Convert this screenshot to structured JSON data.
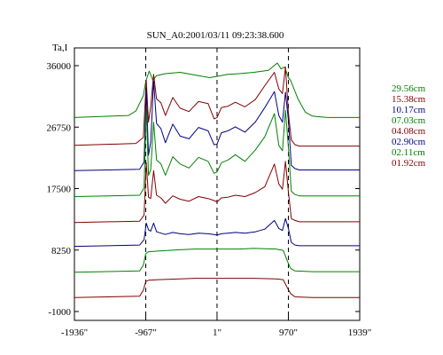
{
  "chart_data": {
    "type": "line",
    "title": "SUN_A0:2001/03/11 09:23:38.600",
    "ylabel": "Ta,I",
    "xlabel": "",
    "x_ticks": [
      "-1936\"",
      "-967\"",
      "1\"",
      "970\"",
      "1939\""
    ],
    "x_tick_values": [
      -1936,
      -967,
      1,
      970,
      1939
    ],
    "y_ticks": [
      "36000",
      "26750",
      "17500",
      "8250",
      "-1000"
    ],
    "y_tick_values": [
      36000,
      26750,
      17500,
      8250,
      -1000
    ],
    "xlim": [
      -1936,
      1939
    ],
    "ylim": [
      -1000,
      40000
    ],
    "vertical_dashed_lines": [
      -967,
      1,
      970
    ],
    "grid": false,
    "legend_position": "right",
    "colors": {
      "green": "#008000",
      "darkred": "#800000",
      "navy": "#000080"
    },
    "series": [
      {
        "name": "29.56cm",
        "color": "#008000",
        "x": [
          -1936,
          -1200,
          -1100,
          -1000,
          -967,
          -920,
          -870,
          -820,
          -700,
          -500,
          -300,
          -100,
          1,
          150,
          300,
          500,
          700,
          820,
          870,
          920,
          970,
          1000,
          1100,
          1200,
          1300,
          1500,
          1939
        ],
        "values": [
          28200,
          28500,
          29200,
          31500,
          33600,
          35200,
          33800,
          34500,
          34800,
          35000,
          34600,
          34200,
          34400,
          34700,
          34800,
          35000,
          35300,
          36400,
          35500,
          35800,
          34200,
          33800,
          31000,
          29000,
          28400,
          28200,
          28200
        ]
      },
      {
        "name": "15.38cm",
        "color": "#800000",
        "x": [
          -1936,
          -1100,
          -1000,
          -960,
          -930,
          -900,
          -860,
          -820,
          -760,
          -700,
          -600,
          -500,
          -380,
          -250,
          -120,
          -40,
          1,
          60,
          150,
          250,
          380,
          520,
          650,
          780,
          840,
          890,
          930,
          970,
          1010,
          1060,
          1120,
          1300,
          1939
        ],
        "values": [
          24000,
          24300,
          25200,
          33800,
          27500,
          29800,
          34700,
          31000,
          30400,
          28500,
          31200,
          29600,
          29100,
          30600,
          30300,
          28000,
          28200,
          29700,
          29900,
          30500,
          29800,
          30900,
          33000,
          35000,
          32500,
          31800,
          35800,
          28900,
          24800,
          24100,
          23900,
          23900,
          23900
        ]
      },
      {
        "name": "10.17cm",
        "color": "#000080",
        "x": [
          -1936,
          -1050,
          -990,
          -960,
          -930,
          -900,
          -860,
          -820,
          -760,
          -700,
          -600,
          -500,
          -380,
          -250,
          -120,
          -40,
          1,
          60,
          150,
          250,
          380,
          520,
          650,
          780,
          840,
          890,
          930,
          970,
          1010,
          1060,
          1120,
          1300,
          1939
        ],
        "values": [
          20200,
          20400,
          21500,
          32500,
          22500,
          24500,
          33700,
          27300,
          26500,
          24400,
          27200,
          25400,
          25000,
          26700,
          26200,
          24100,
          24200,
          25900,
          26200,
          26800,
          26000,
          27500,
          29700,
          32100,
          28500,
          27500,
          32000,
          27800,
          21000,
          20500,
          20300,
          20300,
          20300
        ]
      },
      {
        "name": "07.03cm",
        "color": "#008000",
        "x": [
          -1936,
          -1050,
          -990,
          -960,
          -930,
          -900,
          -860,
          -820,
          -760,
          -700,
          -600,
          -500,
          -380,
          -250,
          -120,
          -40,
          1,
          60,
          150,
          250,
          380,
          520,
          650,
          780,
          840,
          890,
          930,
          970,
          1010,
          1060,
          1120,
          1300,
          1939
        ],
        "values": [
          16300,
          16500,
          17600,
          29800,
          19500,
          20300,
          27500,
          21800,
          21200,
          19500,
          22300,
          21200,
          20600,
          22200,
          21600,
          19800,
          20000,
          21400,
          21800,
          22600,
          21600,
          23300,
          25300,
          28800,
          24000,
          23200,
          29300,
          23700,
          17100,
          16600,
          16400,
          16400,
          16400
        ]
      },
      {
        "name": "04.08cm",
        "color": "#800000",
        "x": [
          -1936,
          -1050,
          -990,
          -960,
          -930,
          -900,
          -860,
          -820,
          -760,
          -700,
          -600,
          -500,
          -380,
          -250,
          -120,
          -40,
          1,
          60,
          150,
          250,
          380,
          520,
          650,
          780,
          840,
          890,
          930,
          970,
          1010,
          1060,
          1120,
          1300,
          1939
        ],
        "values": [
          12400,
          12600,
          13500,
          21400,
          16200,
          16000,
          20200,
          16500,
          16100,
          15300,
          16400,
          15900,
          15600,
          16300,
          16000,
          15700,
          15500,
          16100,
          16200,
          16500,
          16300,
          16900,
          17800,
          21200,
          18200,
          17400,
          21600,
          17000,
          13000,
          12700,
          12500,
          12500,
          12500
        ]
      },
      {
        "name": "02.90cm",
        "color": "#000080",
        "x": [
          -1936,
          -1050,
          -990,
          -960,
          -930,
          -900,
          -860,
          -820,
          -760,
          -700,
          -600,
          -500,
          -380,
          -250,
          -120,
          -40,
          1,
          60,
          150,
          250,
          380,
          520,
          650,
          780,
          840,
          890,
          930,
          970,
          1010,
          1060,
          1120,
          1300,
          1939
        ],
        "values": [
          8800,
          9000,
          9800,
          12300,
          11300,
          11100,
          12300,
          11000,
          10800,
          10600,
          10900,
          10700,
          10600,
          10800,
          10700,
          10600,
          10500,
          10700,
          10800,
          10900,
          10800,
          11000,
          11400,
          12700,
          11500,
          11200,
          13000,
          11500,
          9400,
          9000,
          8900,
          8900,
          8900
        ]
      },
      {
        "name": "02.11cm",
        "color": "#008000",
        "x": [
          -1936,
          -1050,
          -1000,
          -967,
          -930,
          -800,
          -500,
          -300,
          1,
          300,
          500,
          800,
          900,
          960,
          1000,
          1060,
          1300,
          1939
        ],
        "values": [
          4900,
          5100,
          6000,
          7700,
          8000,
          8100,
          8300,
          8400,
          8400,
          8400,
          8500,
          8400,
          8200,
          6500,
          5500,
          5100,
          5000,
          5000
        ]
      },
      {
        "name": "01.92cm",
        "color": "#800000",
        "x": [
          -1936,
          -1050,
          -1000,
          -967,
          -930,
          -800,
          -500,
          -300,
          1,
          300,
          500,
          800,
          900,
          960,
          1000,
          1060,
          1300,
          1939
        ],
        "values": [
          1100,
          1300,
          2200,
          3500,
          3700,
          3800,
          3900,
          4000,
          4000,
          4000,
          4000,
          3900,
          3800,
          2500,
          1700,
          1200,
          1100,
          1100
        ]
      }
    ]
  }
}
